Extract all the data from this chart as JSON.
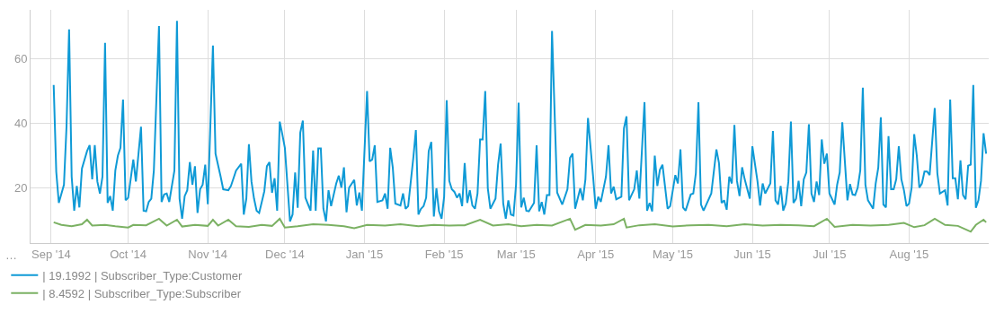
{
  "chart_data": {
    "type": "line",
    "xlim": [
      "2014-08-24",
      "2015-09-01"
    ],
    "ylim": [
      3,
      75
    ],
    "xticks": [
      {
        "value": "2014-09-01",
        "label": "Sep '14"
      },
      {
        "value": "2014-10-01",
        "label": "Oct '14"
      },
      {
        "value": "2014-11-01",
        "label": "Nov '14"
      },
      {
        "value": "2014-12-01",
        "label": "Dec '14"
      },
      {
        "value": "2015-01-01",
        "label": "Jan '15"
      },
      {
        "value": "2015-02-01",
        "label": "Feb '15"
      },
      {
        "value": "2015-03-01",
        "label": "Mar '15"
      },
      {
        "value": "2015-04-01",
        "label": "Apr '15"
      },
      {
        "value": "2015-05-01",
        "label": "May '15"
      },
      {
        "value": "2015-06-01",
        "label": "Jun '15"
      },
      {
        "value": "2015-07-01",
        "label": "Jul '15"
      },
      {
        "value": "2015-08-01",
        "label": "Aug '15"
      }
    ],
    "yticks": [
      20,
      40,
      60
    ],
    "grid": true,
    "legend": "bottom",
    "marker": "none",
    "line_style": "solid",
    "annotations": [
      "…"
    ],
    "series": [
      {
        "name": "| 19.1992 | Subscriber_Type:Customer",
        "color": "#0f9ad6",
        "x": [
          "2014-09-02",
          "2014-09-03",
          "2014-09-04",
          "2014-09-06",
          "2014-09-07",
          "2014-09-08",
          "2014-09-09",
          "2014-09-10",
          "2014-09-11",
          "2014-09-12",
          "2014-09-13",
          "2014-09-15",
          "2014-09-16",
          "2014-09-17",
          "2014-09-18",
          "2014-09-19",
          "2014-09-20",
          "2014-09-21",
          "2014-09-22",
          "2014-09-23",
          "2014-09-24",
          "2014-09-25",
          "2014-09-26",
          "2014-09-27",
          "2014-09-28",
          "2014-09-29",
          "2014-09-30",
          "2014-10-01",
          "2014-10-03",
          "2014-10-04",
          "2014-10-06",
          "2014-10-07",
          "2014-10-08",
          "2014-10-09",
          "2014-10-10",
          "2014-10-11",
          "2014-10-13",
          "2014-10-14",
          "2014-10-15",
          "2014-10-16",
          "2014-10-17",
          "2014-10-19",
          "2014-10-20",
          "2014-10-21",
          "2014-10-22",
          "2014-10-23",
          "2014-10-24",
          "2014-10-25",
          "2014-10-26",
          "2014-10-27",
          "2014-10-28",
          "2014-10-29",
          "2014-10-30",
          "2014-10-31",
          "2014-11-01",
          "2014-11-03",
          "2014-11-04",
          "2014-11-06",
          "2014-11-07",
          "2014-11-09",
          "2014-11-10",
          "2014-11-12",
          "2014-11-14",
          "2014-11-15",
          "2014-11-16",
          "2014-11-17",
          "2014-11-18",
          "2014-11-19",
          "2014-11-20",
          "2014-11-21",
          "2014-11-23",
          "2014-11-24",
          "2014-11-25",
          "2014-11-26",
          "2014-11-27",
          "2014-11-28",
          "2014-11-29",
          "2014-11-30",
          "2014-12-01",
          "2014-12-02",
          "2014-12-03",
          "2014-12-04",
          "2014-12-05",
          "2014-12-06",
          "2014-12-07",
          "2014-12-08",
          "2014-12-09",
          "2014-12-11",
          "2014-12-12",
          "2014-12-13",
          "2014-12-14",
          "2014-12-15",
          "2014-12-16",
          "2014-12-17",
          "2014-12-18",
          "2014-12-19",
          "2014-12-21",
          "2014-12-22",
          "2014-12-23",
          "2014-12-24",
          "2014-12-25",
          "2014-12-26",
          "2014-12-28",
          "2014-12-29",
          "2014-12-30",
          "2014-12-31",
          "2015-01-02",
          "2015-01-03",
          "2015-01-04",
          "2015-01-05",
          "2015-01-06",
          "2015-01-08",
          "2015-01-09",
          "2015-01-10",
          "2015-01-11",
          "2015-01-12",
          "2015-01-13",
          "2015-01-15",
          "2015-01-16",
          "2015-01-17",
          "2015-01-18",
          "2015-01-20",
          "2015-01-21",
          "2015-01-22",
          "2015-01-23",
          "2015-01-24",
          "2015-01-25",
          "2015-01-26",
          "2015-01-27",
          "2015-01-28",
          "2015-01-29",
          "2015-01-30",
          "2015-01-31",
          "2015-02-01",
          "2015-02-02",
          "2015-02-03",
          "2015-02-04",
          "2015-02-05",
          "2015-02-06",
          "2015-02-07",
          "2015-02-08",
          "2015-02-09",
          "2015-02-10",
          "2015-02-11",
          "2015-02-12",
          "2015-02-13",
          "2015-02-14",
          "2015-02-15",
          "2015-02-16",
          "2015-02-17",
          "2015-02-18",
          "2015-02-19",
          "2015-02-21",
          "2015-02-22",
          "2015-02-23",
          "2015-02-24",
          "2015-02-25",
          "2015-02-26",
          "2015-02-27",
          "2015-02-28",
          "2015-03-01",
          "2015-03-02",
          "2015-03-03",
          "2015-03-04",
          "2015-03-05",
          "2015-03-06",
          "2015-03-08",
          "2015-03-09",
          "2015-03-10",
          "2015-03-11",
          "2015-03-12",
          "2015-03-13",
          "2015-03-14",
          "2015-03-15",
          "2015-03-17",
          "2015-03-19",
          "2015-03-21",
          "2015-03-22",
          "2015-03-23",
          "2015-03-24",
          "2015-03-26",
          "2015-03-27",
          "2015-03-28",
          "2015-03-29",
          "2015-03-31",
          "2015-04-01",
          "2015-04-02",
          "2015-04-03",
          "2015-04-05",
          "2015-04-06",
          "2015-04-07",
          "2015-04-08",
          "2015-04-09",
          "2015-04-11",
          "2015-04-12",
          "2015-04-13",
          "2015-04-14",
          "2015-04-16",
          "2015-04-17",
          "2015-04-18",
          "2015-04-20",
          "2015-04-21",
          "2015-04-22",
          "2015-04-23",
          "2015-04-24",
          "2015-04-25",
          "2015-04-26",
          "2015-04-27",
          "2015-04-29",
          "2015-04-30",
          "2015-05-02",
          "2015-05-03",
          "2015-05-04",
          "2015-05-05",
          "2015-05-06",
          "2015-05-08",
          "2015-05-09",
          "2015-05-10",
          "2015-05-11",
          "2015-05-12",
          "2015-05-13",
          "2015-05-16",
          "2015-05-18",
          "2015-05-19",
          "2015-05-20",
          "2015-05-21",
          "2015-05-22",
          "2015-05-23",
          "2015-05-24",
          "2015-05-25",
          "2015-05-26",
          "2015-05-27",
          "2015-05-28",
          "2015-05-29",
          "2015-05-31",
          "2015-06-01",
          "2015-06-03",
          "2015-06-04",
          "2015-06-05",
          "2015-06-06",
          "2015-06-08",
          "2015-06-09",
          "2015-06-10",
          "2015-06-11",
          "2015-06-12",
          "2015-06-13",
          "2015-06-14",
          "2015-06-15",
          "2015-06-16",
          "2015-06-17",
          "2015-06-18",
          "2015-06-19",
          "2015-06-20",
          "2015-06-21",
          "2015-06-22",
          "2015-06-23",
          "2015-06-24",
          "2015-06-25",
          "2015-06-26",
          "2015-06-27",
          "2015-06-28",
          "2015-06-29",
          "2015-06-30",
          "2015-07-01",
          "2015-07-03",
          "2015-07-04",
          "2015-07-05",
          "2015-07-06",
          "2015-07-08",
          "2015-07-09",
          "2015-07-10",
          "2015-07-11",
          "2015-07-12",
          "2015-07-13",
          "2015-07-14",
          "2015-07-15",
          "2015-07-16",
          "2015-07-18",
          "2015-07-19",
          "2015-07-20",
          "2015-07-21",
          "2015-07-22",
          "2015-07-23",
          "2015-07-24",
          "2015-07-25",
          "2015-07-26",
          "2015-07-27",
          "2015-07-28",
          "2015-07-29",
          "2015-07-30",
          "2015-07-31",
          "2015-08-01",
          "2015-08-02",
          "2015-08-03",
          "2015-08-04",
          "2015-08-05",
          "2015-08-06",
          "2015-08-07",
          "2015-08-08",
          "2015-08-09",
          "2015-08-11",
          "2015-08-12",
          "2015-08-13",
          "2015-08-15",
          "2015-08-16",
          "2015-08-17",
          "2015-08-18",
          "2015-08-19",
          "2015-08-20",
          "2015-08-21",
          "2015-08-22",
          "2015-08-23",
          "2015-08-24",
          "2015-08-25",
          "2015-08-26",
          "2015-08-27",
          "2015-08-28",
          "2015-08-29",
          "2015-08-30",
          "2015-08-31"
        ],
        "values": [
          51.8,
          25,
          15.4,
          21,
          39,
          69,
          23.5,
          13,
          20.6,
          14,
          26,
          31.4,
          33.2,
          22.7,
          33.2,
          22,
          18.3,
          23.5,
          64.8,
          15.4,
          17.5,
          13,
          25.4,
          30,
          32.4,
          47.3,
          16.2,
          17,
          28.8,
          22,
          38.9,
          13,
          12.8,
          15.7,
          16.7,
          25.4,
          70,
          15.7,
          18,
          18.3,
          15.7,
          25.4,
          71.6,
          16.7,
          10.5,
          17.5,
          19.3,
          28,
          21,
          26.7,
          12.3,
          19.6,
          21,
          27.2,
          15,
          64,
          30.6,
          23.5,
          19.6,
          19.3,
          20.6,
          25.4,
          27.5,
          11.8,
          16.7,
          33.5,
          22,
          16.7,
          13,
          12.3,
          19,
          26.7,
          28,
          18.5,
          23,
          13,
          40.5,
          36.6,
          32.4,
          21,
          9.7,
          11.8,
          24.8,
          13.9,
          37.1,
          40.8,
          17,
          13,
          31.6,
          13,
          32.2,
          32.2,
          13.6,
          9.7,
          19.3,
          14.4,
          21.4,
          23.8,
          20.1,
          26.4,
          12.5,
          20.1,
          22.5,
          14.6,
          18.6,
          13,
          49.9,
          28.2,
          28.8,
          33.2,
          15.7,
          16.2,
          18.3,
          13.6,
          32.4,
          26.4,
          15.2,
          14.6,
          18.3,
          13.6,
          14.4,
          29.3,
          37.9,
          11.8,
          13.6,
          14.4,
          17,
          31.4,
          34.2,
          11.2,
          19.9,
          12.8,
          10.5,
          17.3,
          47.1,
          22.2,
          19.6,
          18.8,
          17,
          18.3,
          14.4,
          27.7,
          15.4,
          19.3,
          14.6,
          13.6,
          18.3,
          35,
          35,
          49.9,
          19.9,
          13.6,
          16.7,
          27.2,
          33.7,
          15.2,
          10.5,
          16.2,
          11.8,
          11.5,
          21,
          46.3,
          14,
          17,
          13,
          12.8,
          15.4,
          33.2,
          12.8,
          15.7,
          11.8,
          17.8,
          17.8,
          68.5,
          18.6,
          14.9,
          19.6,
          29.3,
          30.6,
          13.6,
          19.9,
          16.2,
          22.7,
          41.6,
          23.5,
          13.6,
          17.3,
          15.7,
          23.5,
          33.2,
          18.3,
          20.4,
          16.5,
          17.3,
          38.4,
          42.1,
          16.2,
          19.6,
          25.4,
          16.7,
          46.5,
          13,
          15.4,
          12.8,
          30,
          20.6,
          25.6,
          27.2,
          13.6,
          14.4,
          24,
          21.4,
          31.9,
          14,
          13,
          18,
          18.3,
          24.6,
          46.5,
          14.9,
          13,
          18.3,
          31.9,
          27.7,
          15.4,
          16.2,
          13.3,
          23.5,
          21.4,
          39.5,
          22.2,
          17.5,
          26.4,
          22.7,
          16.7,
          32.9,
          22,
          14.6,
          21.4,
          18.3,
          21.4,
          37.6,
          16.2,
          14.9,
          20.6,
          13,
          15.2,
          22,
          40.5,
          15.4,
          16.7,
          22.2,
          14.4,
          22.7,
          24.8,
          39.7,
          18.3,
          15.7,
          22,
          17.8,
          35,
          27.5,
          30.6,
          18.3,
          14.9,
          21,
          24.8,
          40.3,
          16.2,
          21.2,
          18,
          17.8,
          20.1,
          25.4,
          51,
          21,
          16.2,
          13.6,
          21.4,
          26.2,
          41.8,
          14.9,
          14,
          36,
          19.6,
          19.6,
          22.7,
          32.9,
          22.7,
          19.3,
          14.4,
          15.2,
          20.1,
          36.6,
          30,
          20.1,
          21.4,
          25.1,
          25.1,
          24,
          44.7,
          24.6,
          18.3,
          19.3,
          14.6,
          47.3,
          23,
          23,
          16.5,
          28.5,
          17.8,
          16.5,
          26.9,
          27.2,
          51.8,
          13.9,
          16.2,
          22.2,
          36.9,
          30.6
        ]
      },
      {
        "name": "| 8.4592 | Subscriber_Type:Subscriber",
        "color": "#7bb163",
        "x": [
          "2014-09-02",
          "2014-09-05",
          "2014-09-09",
          "2014-09-13",
          "2014-09-15",
          "2014-09-17",
          "2014-09-22",
          "2014-09-26",
          "2014-10-01",
          "2014-10-03",
          "2014-10-08",
          "2014-10-13",
          "2014-10-16",
          "2014-10-20",
          "2014-10-22",
          "2014-10-27",
          "2014-11-01",
          "2014-11-03",
          "2014-11-05",
          "2014-11-09",
          "2014-11-12",
          "2014-11-17",
          "2014-11-22",
          "2014-11-26",
          "2014-11-29",
          "2014-12-01",
          "2014-12-06",
          "2014-12-12",
          "2014-12-18",
          "2014-12-24",
          "2014-12-28",
          "2015-01-02",
          "2015-01-09",
          "2015-01-15",
          "2015-01-22",
          "2015-01-28",
          "2015-02-03",
          "2015-02-09",
          "2015-02-15",
          "2015-02-20",
          "2015-02-26",
          "2015-03-03",
          "2015-03-09",
          "2015-03-15",
          "2015-03-22",
          "2015-03-24",
          "2015-03-28",
          "2015-04-03",
          "2015-04-08",
          "2015-04-12",
          "2015-04-13",
          "2015-04-18",
          "2015-04-24",
          "2015-05-01",
          "2015-05-08",
          "2015-05-15",
          "2015-05-22",
          "2015-05-29",
          "2015-06-05",
          "2015-06-12",
          "2015-06-19",
          "2015-06-25",
          "2015-06-30",
          "2015-07-03",
          "2015-07-10",
          "2015-07-17",
          "2015-07-24",
          "2015-07-30",
          "2015-08-03",
          "2015-08-07",
          "2015-08-11",
          "2015-08-15",
          "2015-08-20",
          "2015-08-25",
          "2015-08-27",
          "2015-08-30",
          "2015-08-31"
        ],
        "values": [
          9.4,
          8.6,
          8.2,
          8.8,
          10.2,
          8.4,
          8.6,
          8.2,
          7.8,
          8.6,
          8.5,
          10.5,
          8.4,
          10.2,
          8.1,
          8.6,
          8.3,
          10.2,
          8.4,
          10.2,
          8.2,
          8,
          8.6,
          8.3,
          10.5,
          7.8,
          8.2,
          8.8,
          8.6,
          8.2,
          7.6,
          8.6,
          8.4,
          8.8,
          8.2,
          8.6,
          8.4,
          8.5,
          10.2,
          8.4,
          8.8,
          8.2,
          8.6,
          8.4,
          10.5,
          7.1,
          8.6,
          8.4,
          8.8,
          10.5,
          7.8,
          8.5,
          8.8,
          8.1,
          8.5,
          8.6,
          8.2,
          8.8,
          8.4,
          8.6,
          8.5,
          8.2,
          10.5,
          8,
          8.6,
          8.4,
          8.6,
          9.2,
          7.9,
          8.5,
          10.5,
          8.6,
          8.3,
          6.5,
          8.6,
          10.2,
          9.4
        ]
      }
    ]
  }
}
